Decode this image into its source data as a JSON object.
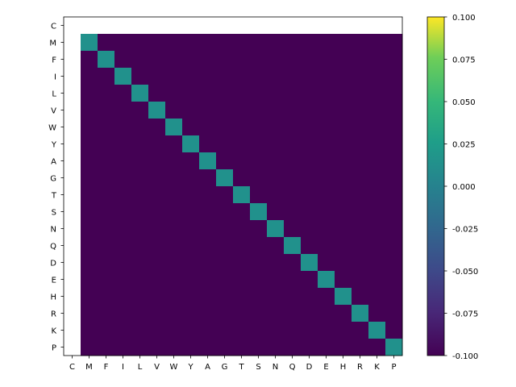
{
  "chart_data": {
    "type": "heatmap",
    "row_labels": [
      "C",
      "M",
      "F",
      "I",
      "L",
      "V",
      "W",
      "Y",
      "A",
      "G",
      "T",
      "S",
      "N",
      "Q",
      "D",
      "E",
      "H",
      "R",
      "K",
      "P"
    ],
    "col_labels": [
      "C",
      "M",
      "F",
      "I",
      "L",
      "V",
      "W",
      "Y",
      "A",
      "G",
      "T",
      "S",
      "N",
      "Q",
      "D",
      "E",
      "H",
      "R",
      "K",
      "P"
    ],
    "masked_row": "C",
    "masked_col": "C",
    "cell_rule": "value is 0.0 where row label equals column label, -0.1 elsewhere; row C and column C are blank",
    "diagonal_value": 0.0,
    "off_diagonal_value": -0.1,
    "colorbar": {
      "vmin": -0.1,
      "vmax": 0.1,
      "ticks": [
        "-0.100",
        "-0.075",
        "-0.050",
        "-0.025",
        "0.000",
        "0.025",
        "0.050",
        "0.075",
        "0.100"
      ],
      "colormap": "viridis"
    },
    "colors": {
      "low": "#440154",
      "mid": "#21918c",
      "high": "#fde725"
    }
  }
}
